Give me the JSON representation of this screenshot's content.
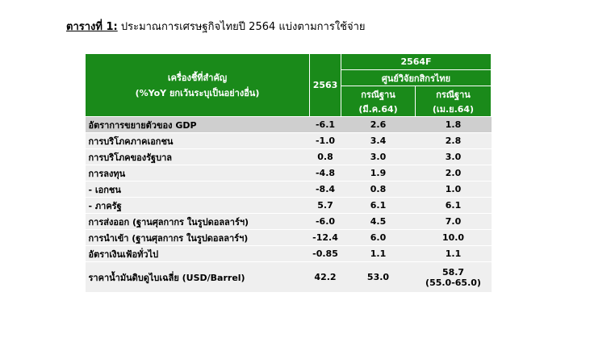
{
  "title": {
    "lead": "ตารางที่ 1:",
    "text": " ประมาณการเศรษฐกิจไทยปี 2564 แบ่งตามการใช้จ่าย"
  },
  "header": {
    "indicator_line1": "เครื่องชี้ที่สำคัญ",
    "indicator_line2": "(%YoY ยกเว้นระบุเป็นอย่างอื่น)",
    "year_2563": "2563",
    "year_2564f": "2564F",
    "source": "ศูนย์วิจัยกสิกรไทย",
    "scenario1_line1": "กรณีฐาน",
    "scenario1_line2": "(มี.ค.64)",
    "scenario2_line1": "กรณีฐาน",
    "scenario2_line2": "(เม.ย.64)"
  },
  "rows": [
    {
      "label": "อัตราการขยายตัวของ GDP",
      "y2563": "-6.1",
      "mar64": "2.6",
      "apr64": "1.8"
    },
    {
      "label": "การบริโภคภาคเอกชน",
      "y2563": "-1.0",
      "mar64": "3.4",
      "apr64": "2.8"
    },
    {
      "label": "การบริโภคของรัฐบาล",
      "y2563": "0.8",
      "mar64": "3.0",
      "apr64": "3.0"
    },
    {
      "label": "การลงทุน",
      "y2563": "-4.8",
      "mar64": "1.9",
      "apr64": "2.0"
    },
    {
      "label": " - เอกชน",
      "y2563": "-8.4",
      "mar64": "0.8",
      "apr64": "1.0"
    },
    {
      "label": " - ภาครัฐ",
      "y2563": "5.7",
      "mar64": "6.1",
      "apr64": "6.1"
    },
    {
      "label": "การส่งออก (ฐานศุลกากร ในรูปดอลลาร์ฯ)",
      "y2563": "-6.0",
      "mar64": "4.5",
      "apr64": "7.0"
    },
    {
      "label": "การนำเข้า (ฐานศุลกากร ในรูปดอลลาร์ฯ)",
      "y2563": "-12.4",
      "mar64": "6.0",
      "apr64": "10.0"
    },
    {
      "label": "อัตราเงินเฟ้อทั่วไป",
      "y2563": "-0.85",
      "mar64": "1.1",
      "apr64": "1.1"
    }
  ],
  "oil_row": {
    "label": "ราคาน้ำมันดิบดูไบเฉลี่ย (USD/Barrel)",
    "y2563": "42.2",
    "mar64": "53.0",
    "apr64_line1": "58.7",
    "apr64_line2": "(55.0-65.0)"
  }
}
